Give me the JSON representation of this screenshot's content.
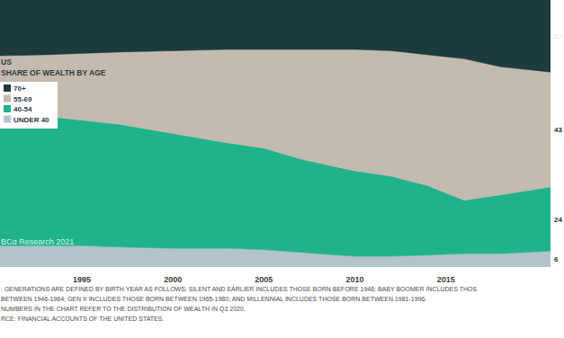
{
  "chart_data": {
    "type": "area",
    "stacked": true,
    "subtitle": "US",
    "title": "SHARE OF WEALTH BY AGE",
    "x": [
      1990,
      1993,
      1995,
      1997,
      2000,
      2003,
      2005,
      2007,
      2009,
      2010,
      2012,
      2014,
      2016,
      2018,
      2020.75
    ],
    "xlim": [
      1990.5,
      2020.75
    ],
    "xticks": [
      1995,
      2000,
      2005,
      2010,
      2015
    ],
    "ylim": [
      0,
      100
    ],
    "tick_labels": "x",
    "grid": false,
    "legend": "upper left",
    "data_labels": true,
    "series": [
      {
        "name": "UNDER 40",
        "color": "#b3c3cb",
        "values": [
          8,
          8,
          8,
          7.5,
          7,
          7,
          6.5,
          5.5,
          4.5,
          4,
          4,
          4.5,
          5,
          5,
          6
        ]
      },
      {
        "name": "40-54",
        "color": "#20b38b",
        "values": [
          50,
          48.5,
          47,
          46,
          43,
          39.5,
          38,
          35,
          33,
          32,
          30,
          26,
          20,
          22,
          24
        ]
      },
      {
        "name": "55-69",
        "color": "#c3bab0",
        "values": [
          21,
          23,
          25,
          27,
          31,
          35,
          37,
          41,
          44,
          45.5,
          47,
          49,
          53,
          48,
          43
        ]
      },
      {
        "name": "70+",
        "color": "#1d3b3d",
        "values": [
          21,
          20.5,
          20,
          19.5,
          19,
          18.5,
          18.5,
          18.5,
          18.5,
          18.5,
          19,
          20.5,
          22,
          25,
          27
        ]
      }
    ],
    "annotations": [
      "BCα Research 2021",
      ": GENERATIONS ARE DEFINED BY BIRTH YEAR AS FOLLOWS: SILENT AND EARLIER INCLUDES THOSE BORN BEFORE 1946; BABY BOOMER INCLUDES THOS",
      " BETWEEN 1946-1964; GEN X INCLUDES THOSE BORN BETWEEN 1965-1980; AND MILLENNIAL INCLUDES THOSE BORN BETWEEN 1981-1996.",
      "NUMBERS IN THE CHART REFER TO THE DISTRIBUTION OF WEALTH IN Q3 2020.",
      "RCE: FINANCIAL ACCOUNTS OF THE UNITED STATES."
    ]
  }
}
